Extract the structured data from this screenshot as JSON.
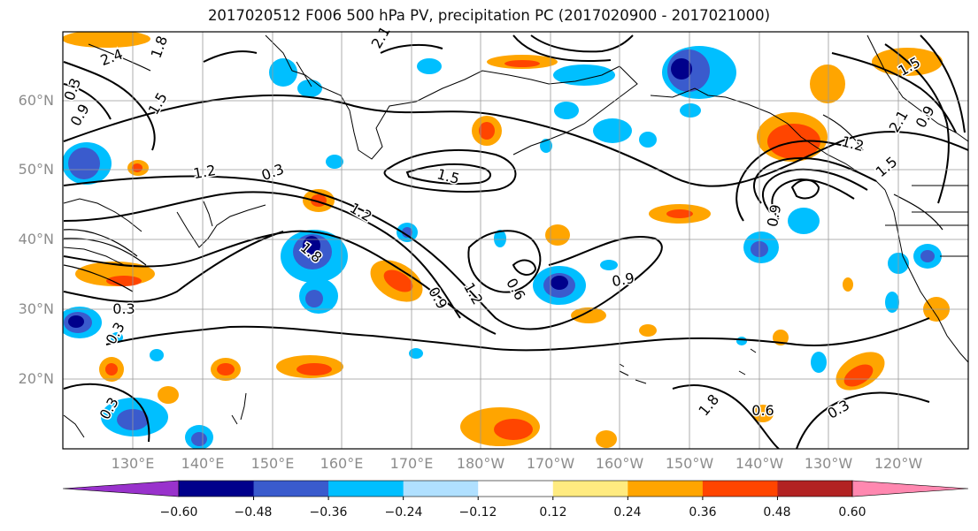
{
  "title": "2017020512 F006 500 hPa PV, precipitation PC (2017020900 - 2017021000)",
  "lat_labels": [
    "60°N",
    "50°N",
    "40°N",
    "30°N",
    "20°N"
  ],
  "lon_labels": [
    "130°E",
    "140°E",
    "150°E",
    "160°E",
    "170°E",
    "180°W",
    "170°W",
    "160°W",
    "150°W",
    "140°W",
    "130°W",
    "120°W"
  ],
  "colorbar": {
    "colors": [
      "#9932cc",
      "#00008b",
      "#3a5bcd",
      "#00bfff",
      "#b0e0ff",
      "#ffffff",
      "#ffeb80",
      "#ffa500",
      "#ff4500",
      "#b22222",
      "#ff88b0"
    ],
    "tick_labels": [
      "−0.60",
      "−0.48",
      "−0.36",
      "−0.24",
      "−0.12",
      "0.12",
      "0.24",
      "0.36",
      "0.48",
      "0.60"
    ]
  },
  "contour_labels": [
    "2.4",
    "1.8",
    "0.3",
    "0.9",
    "1.5",
    "1.2",
    "0.3",
    "1.5",
    "1.8",
    "1.2",
    "0.9",
    "0.3",
    "1.2",
    "0.6",
    "0.9",
    "1.2",
    "1.5",
    "0.9",
    "2.1",
    "1.8",
    "0.3",
    "0.3",
    "0.6",
    "0.3",
    "0.9",
    "2.1",
    "1.5"
  ]
}
